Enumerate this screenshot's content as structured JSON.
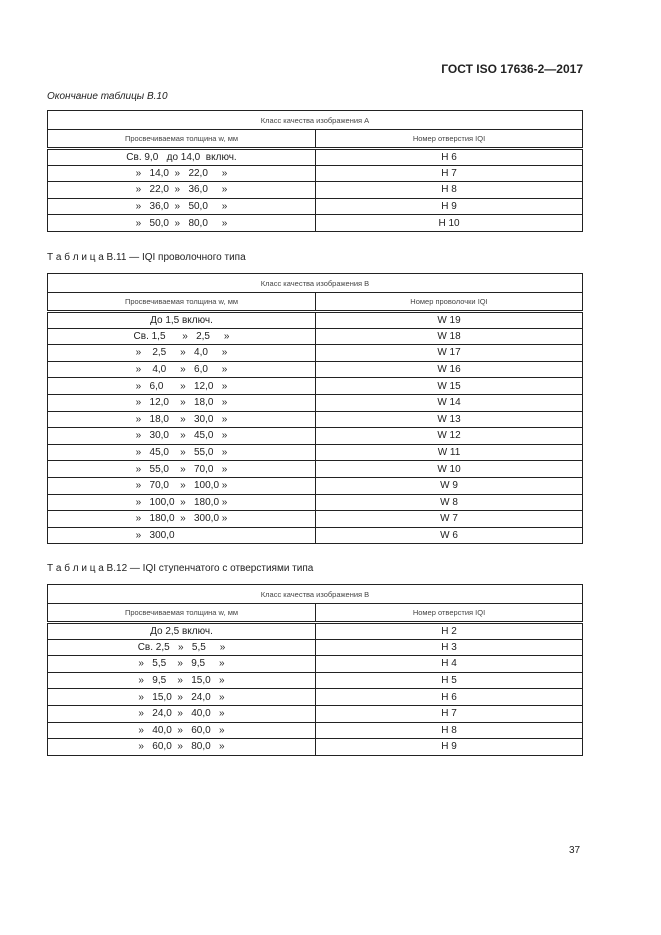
{
  "header": "ГОСТ ISO 17636-2—2017",
  "table_b10": {
    "caption": "Окончание таблицы В.10",
    "class_header": "Класс качества изображения А",
    "col1": "Просвечиваемая толщина w, мм",
    "col2": "Номер отверстия IQI",
    "rows": [
      [
        "Св. 9,0   до 14,0  включ.",
        "H 6"
      ],
      [
        "»   14,0  »   22,0     »",
        "H 7"
      ],
      [
        "»   22,0  »   36,0     »",
        "H 8"
      ],
      [
        "»   36,0  »   50,0     »",
        "H 9"
      ],
      [
        "»   50,0  »   80,0     »",
        "H 10"
      ]
    ]
  },
  "table_b11": {
    "caption": "Т а б л и ц а  В.11 — IQI проволочного типа",
    "class_header": "Класс качества изображения В",
    "col1": "Просвечиваемая толщина w, мм",
    "col2": "Номер проволочки IQI",
    "rows": [
      [
        "До 1,5 включ.",
        "W 19"
      ],
      [
        "Св. 1,5      »   2,5     »",
        "W 18"
      ],
      [
        "»    2,5     »   4,0     »",
        "W 17"
      ],
      [
        "»    4,0     »   6,0     »",
        "W 16"
      ],
      [
        "»   6,0      »   12,0   »",
        "W 15"
      ],
      [
        "»   12,0    »   18,0   »",
        "W 14"
      ],
      [
        "»   18,0    »   30,0   »",
        "W 13"
      ],
      [
        "»   30,0    »   45,0   »",
        "W 12"
      ],
      [
        "»   45,0    »   55,0   »",
        "W 11"
      ],
      [
        "»   55,0    »   70,0   »",
        "W 10"
      ],
      [
        "»   70,0    »   100,0 »",
        "W 9"
      ],
      [
        "»   100,0  »   180,0 »",
        "W 8"
      ],
      [
        "»   180,0  »   300,0 »",
        "W 7"
      ],
      [
        "»   300,0                   ",
        "W 6"
      ]
    ]
  },
  "table_b12": {
    "caption": "Т а б л и ц а  В.12 — IQI ступенчатого с отверстиями типа",
    "class_header": "Класс качества изображения В",
    "col1": "Просвечиваемая толщина w, мм",
    "col2": "Номер отверстия IQI",
    "rows": [
      [
        "До 2,5 включ.",
        "H 2"
      ],
      [
        "Св. 2,5   »   5,5     »",
        "H 3"
      ],
      [
        "»   5,5    »   9,5     »",
        "H 4"
      ],
      [
        "»   9,5    »   15,0   »",
        "H 5"
      ],
      [
        "»   15,0  »   24,0   »",
        "H 6"
      ],
      [
        "»   24,0  »   40,0   »",
        "H 7"
      ],
      [
        "»   40,0  »   60,0   »",
        "H 8"
      ],
      [
        "»   60,0  »   80,0   »",
        "H 9"
      ]
    ]
  },
  "page_number": "37"
}
